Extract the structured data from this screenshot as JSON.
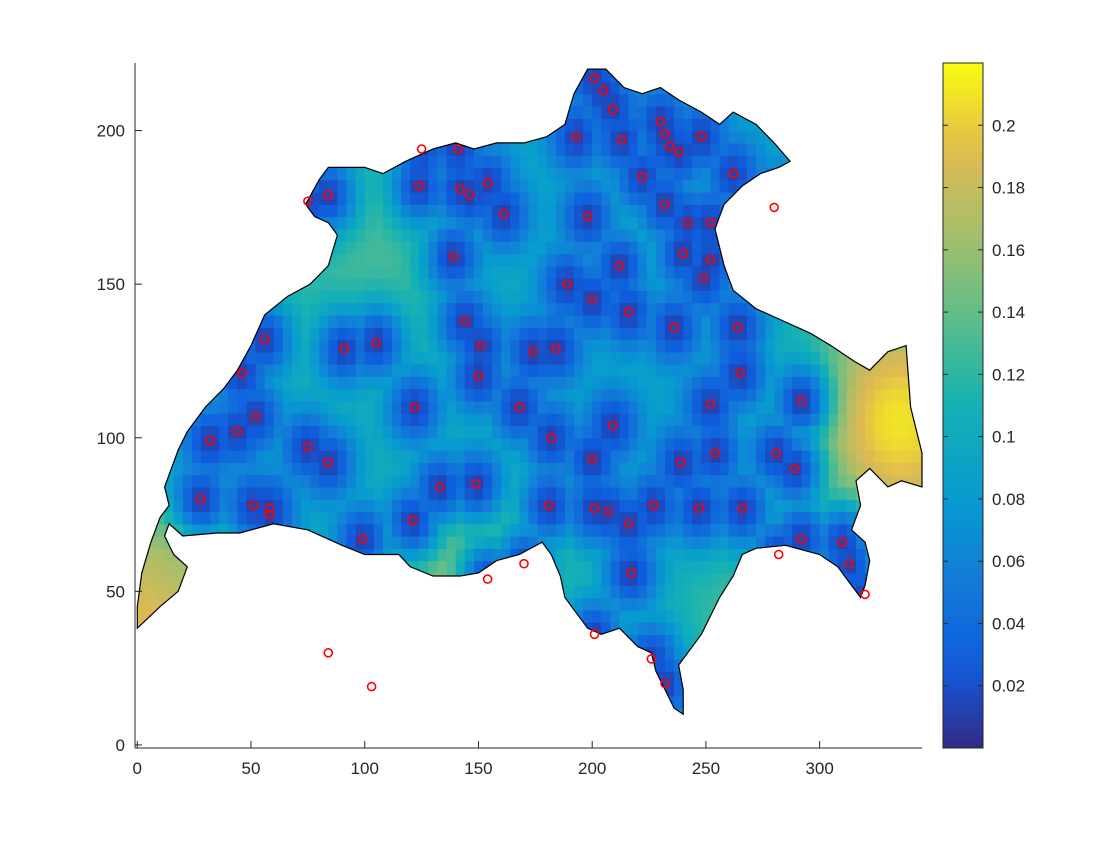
{
  "chart_data": {
    "type": "heatmap",
    "title": "",
    "xlabel": "",
    "ylabel": "",
    "xlim": [
      -1,
      345
    ],
    "ylim": [
      -1,
      222
    ],
    "x_ticks": [
      0,
      50,
      100,
      150,
      200,
      250,
      300
    ],
    "y_ticks": [
      0,
      50,
      100,
      150,
      200
    ],
    "colorbar": {
      "range": [
        0.0,
        0.22
      ],
      "ticks": [
        "0.02",
        "0.04",
        "0.06",
        "0.08",
        "0.1",
        "0.12",
        "0.14",
        "0.16",
        "0.18",
        "0.2"
      ],
      "tick_values": [
        0.02,
        0.04,
        0.06,
        0.08,
        0.1,
        0.12,
        0.14,
        0.16,
        0.18,
        0.2
      ],
      "colormap": "parula"
    },
    "background_value": 0.09,
    "border_outline": [
      [
        0,
        38
      ],
      [
        10,
        45
      ],
      [
        18,
        50
      ],
      [
        22,
        58
      ],
      [
        16,
        62
      ],
      [
        12,
        68
      ],
      [
        14,
        72
      ],
      [
        20,
        68
      ],
      [
        35,
        69
      ],
      [
        45,
        69
      ],
      [
        60,
        72
      ],
      [
        75,
        70
      ],
      [
        90,
        65
      ],
      [
        100,
        62
      ],
      [
        115,
        62
      ],
      [
        120,
        58
      ],
      [
        130,
        55
      ],
      [
        142,
        55
      ],
      [
        150,
        56
      ],
      [
        158,
        60
      ],
      [
        168,
        62
      ],
      [
        178,
        66
      ],
      [
        182,
        62
      ],
      [
        186,
        55
      ],
      [
        188,
        48
      ],
      [
        192,
        44
      ],
      [
        198,
        38
      ],
      [
        204,
        36
      ],
      [
        212,
        38
      ],
      [
        220,
        32
      ],
      [
        226,
        30
      ],
      [
        228,
        24
      ],
      [
        232,
        18
      ],
      [
        236,
        12
      ],
      [
        240,
        10
      ],
      [
        240,
        18
      ],
      [
        238,
        26
      ],
      [
        242,
        30
      ],
      [
        248,
        36
      ],
      [
        252,
        42
      ],
      [
        256,
        48
      ],
      [
        262,
        55
      ],
      [
        266,
        62
      ],
      [
        272,
        64
      ],
      [
        285,
        65
      ],
      [
        300,
        62
      ],
      [
        308,
        58
      ],
      [
        312,
        54
      ],
      [
        318,
        48
      ],
      [
        320,
        52
      ],
      [
        322,
        60
      ],
      [
        320,
        66
      ],
      [
        314,
        70
      ],
      [
        318,
        78
      ],
      [
        316,
        86
      ],
      [
        322,
        90
      ],
      [
        330,
        84
      ],
      [
        336,
        86
      ],
      [
        345,
        84
      ],
      [
        345,
        95
      ],
      [
        340,
        110
      ],
      [
        338,
        130
      ],
      [
        330,
        128
      ],
      [
        322,
        122
      ],
      [
        315,
        125
      ],
      [
        305,
        130
      ],
      [
        296,
        134
      ],
      [
        284,
        138
      ],
      [
        272,
        142
      ],
      [
        262,
        148
      ],
      [
        258,
        156
      ],
      [
        254,
        168
      ],
      [
        258,
        176
      ],
      [
        266,
        182
      ],
      [
        274,
        186
      ],
      [
        282,
        188
      ],
      [
        287,
        190
      ],
      [
        280,
        196
      ],
      [
        272,
        202
      ],
      [
        262,
        206
      ],
      [
        256,
        202
      ],
      [
        248,
        206
      ],
      [
        238,
        210
      ],
      [
        230,
        214
      ],
      [
        222,
        212
      ],
      [
        214,
        214
      ],
      [
        206,
        220
      ],
      [
        198,
        220
      ],
      [
        192,
        212
      ],
      [
        188,
        202
      ],
      [
        180,
        198
      ],
      [
        170,
        196
      ],
      [
        158,
        196
      ],
      [
        148,
        194
      ],
      [
        140,
        196
      ],
      [
        130,
        194
      ],
      [
        118,
        190
      ],
      [
        108,
        186
      ],
      [
        100,
        188
      ],
      [
        92,
        188
      ],
      [
        84,
        188
      ],
      [
        80,
        184
      ],
      [
        74,
        176
      ],
      [
        78,
        172
      ],
      [
        84,
        170
      ],
      [
        88,
        166
      ],
      [
        84,
        156
      ],
      [
        76,
        150
      ],
      [
        66,
        146
      ],
      [
        56,
        140
      ],
      [
        50,
        130
      ],
      [
        44,
        122
      ],
      [
        38,
        116
      ],
      [
        30,
        110
      ],
      [
        22,
        102
      ],
      [
        18,
        96
      ],
      [
        15,
        90
      ],
      [
        12,
        84
      ],
      [
        14,
        78
      ],
      [
        10,
        74
      ],
      [
        6,
        66
      ],
      [
        2,
        56
      ],
      [
        0,
        45
      ],
      [
        0,
        38
      ]
    ],
    "hot_regions": [
      {
        "x": 148,
        "y": 30,
        "r": 34,
        "value": 0.19
      },
      {
        "x": 335,
        "y": 105,
        "r": 30,
        "value": 0.21
      },
      {
        "x": 10,
        "y": 44,
        "r": 22,
        "value": 0.2
      },
      {
        "x": 20,
        "y": 55,
        "r": 12,
        "value": 0.17
      },
      {
        "x": 100,
        "y": 160,
        "r": 36,
        "value": 0.13
      },
      {
        "x": 60,
        "y": 152,
        "r": 20,
        "value": 0.12
      },
      {
        "x": 270,
        "y": 36,
        "r": 28,
        "value": 0.13
      },
      {
        "x": 225,
        "y": 170,
        "r": 24,
        "value": 0.11
      },
      {
        "x": 30,
        "y": 35,
        "r": 10,
        "value": 0.2
      },
      {
        "x": 180,
        "y": 40,
        "r": 16,
        "value": 0.11
      }
    ],
    "stations": [
      [
        201,
        217
      ],
      [
        205,
        213
      ],
      [
        209,
        207
      ],
      [
        193,
        198
      ],
      [
        213,
        197
      ],
      [
        230,
        203
      ],
      [
        232,
        199
      ],
      [
        234,
        195
      ],
      [
        238,
        193
      ],
      [
        248,
        198
      ],
      [
        262,
        186
      ],
      [
        222,
        185
      ],
      [
        232,
        176
      ],
      [
        242,
        170
      ],
      [
        252,
        170
      ],
      [
        280,
        175
      ],
      [
        125,
        194
      ],
      [
        141,
        194
      ],
      [
        124,
        182
      ],
      [
        142,
        181
      ],
      [
        146,
        179
      ],
      [
        154,
        183
      ],
      [
        161,
        173
      ],
      [
        198,
        172
      ],
      [
        84,
        179
      ],
      [
        75,
        177
      ],
      [
        139,
        159
      ],
      [
        212,
        156
      ],
      [
        240,
        160
      ],
      [
        252,
        158
      ],
      [
        249,
        152
      ],
      [
        189,
        150
      ],
      [
        200,
        145
      ],
      [
        216,
        141
      ],
      [
        144,
        138
      ],
      [
        236,
        136
      ],
      [
        264,
        136
      ],
      [
        56,
        132
      ],
      [
        91,
        129
      ],
      [
        105,
        131
      ],
      [
        151,
        130
      ],
      [
        174,
        128
      ],
      [
        184,
        129
      ],
      [
        46,
        121
      ],
      [
        150,
        120
      ],
      [
        265,
        121
      ],
      [
        122,
        110
      ],
      [
        168,
        110
      ],
      [
        252,
        111
      ],
      [
        292,
        112
      ],
      [
        52,
        107
      ],
      [
        44,
        102
      ],
      [
        32,
        99
      ],
      [
        75,
        97
      ],
      [
        209,
        104
      ],
      [
        182,
        100
      ],
      [
        200,
        93
      ],
      [
        239,
        92
      ],
      [
        254,
        95
      ],
      [
        281,
        95
      ],
      [
        289,
        90
      ],
      [
        84,
        92
      ],
      [
        133,
        84
      ],
      [
        149,
        85
      ],
      [
        28,
        80
      ],
      [
        51,
        78
      ],
      [
        58,
        77
      ],
      [
        58,
        75
      ],
      [
        181,
        78
      ],
      [
        201,
        77
      ],
      [
        207,
        76
      ],
      [
        227,
        78
      ],
      [
        247,
        77
      ],
      [
        266,
        77
      ],
      [
        121,
        73
      ],
      [
        216,
        72
      ],
      [
        99,
        67
      ],
      [
        292,
        67
      ],
      [
        310,
        66
      ],
      [
        282,
        62
      ],
      [
        313,
        59
      ],
      [
        170,
        59
      ],
      [
        154,
        54
      ],
      [
        217,
        56
      ],
      [
        320,
        49
      ],
      [
        201,
        36
      ],
      [
        84,
        30
      ],
      [
        226,
        28
      ],
      [
        103,
        19
      ],
      [
        232,
        20
      ]
    ]
  }
}
